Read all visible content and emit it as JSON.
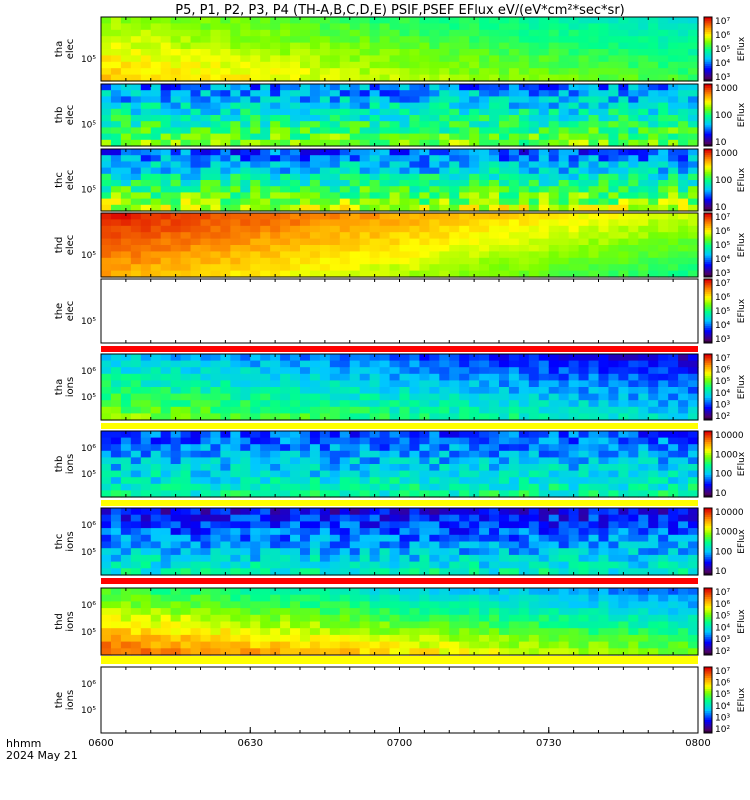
{
  "title": "P5, P1, P2, P3, P4 (TH-A,B,C,D,E) PSIF,PSEF EFlux eV/(eV*cm²*sec*sr)",
  "time_axis": {
    "label_line1": "hhmm",
    "label_line2": "2024 May 21",
    "ticks": [
      "0600",
      "0630",
      "0700",
      "0730",
      "0800"
    ]
  },
  "colorbar_unit": "EFlux",
  "chart_data": [
    {
      "type": "heatmap",
      "panel": "tha elec",
      "ylabel": [
        "tha",
        "elec"
      ],
      "ytick": "10⁵",
      "cbar_ticks": [
        "10³",
        "10⁴",
        "10⁵",
        "10⁶",
        "10⁷"
      ],
      "cbar_range_log10": [
        2.5,
        7
      ],
      "level_start": 5.8,
      "level_end": 4.8,
      "level_top_delta": -0.4,
      "level_bottom_delta": 0.2,
      "noise": 0.15,
      "bars": []
    },
    {
      "type": "heatmap",
      "panel": "thb elec",
      "ylabel": [
        "thb",
        "elec"
      ],
      "ytick": "10⁵",
      "cbar_ticks": [
        "10",
        "100",
        "1000"
      ],
      "cbar_range_log10": [
        0.8,
        3.8
      ],
      "level_start": 2.1,
      "level_end": 2.1,
      "level_top_delta": -0.4,
      "level_bottom_delta": 0.5,
      "noise": 0.35,
      "bars": []
    },
    {
      "type": "heatmap",
      "panel": "thc elec",
      "ylabel": [
        "thc",
        "elec"
      ],
      "ytick": "10⁵",
      "cbar_ticks": [
        "10",
        "100",
        "1000"
      ],
      "cbar_range_log10": [
        0.8,
        3.8
      ],
      "level_start": 2.2,
      "level_end": 2.2,
      "level_top_delta": -0.6,
      "level_bottom_delta": 0.6,
      "noise": 0.35,
      "bars": []
    },
    {
      "type": "heatmap",
      "panel": "thd elec",
      "ylabel": [
        "thd",
        "elec"
      ],
      "ytick": "10⁵",
      "cbar_ticks": [
        "10³",
        "10⁴",
        "10⁵",
        "10⁶",
        "10⁷"
      ],
      "cbar_range_log10": [
        2.5,
        7
      ],
      "level_start": 6.6,
      "level_end": 5.2,
      "level_top_delta": 0.3,
      "level_bottom_delta": -0.4,
      "noise": 0.12,
      "bars": []
    },
    {
      "type": "heatmap",
      "panel": "the elec",
      "ylabel": [
        "the",
        "elec"
      ],
      "ytick": "10⁵",
      "cbar_ticks": [
        "10³",
        "10⁴",
        "10⁵",
        "10⁶",
        "10⁷"
      ],
      "cbar_range_log10": [
        2.5,
        7
      ],
      "empty": true,
      "bars": [
        {
          "color": "#ff0000"
        }
      ]
    },
    {
      "type": "heatmap",
      "panel": "tha ions",
      "ylabel": [
        "tha",
        "ions"
      ],
      "ytick": "10⁵",
      "ytick2": "10⁶",
      "cbar_ticks": [
        "10²",
        "10³",
        "10⁴",
        "10⁵",
        "10⁶",
        "10⁷"
      ],
      "cbar_range_log10": [
        1.5,
        7
      ],
      "level_start": 4.8,
      "level_end": 3.6,
      "level_top_delta": -1.2,
      "level_bottom_delta": 0.1,
      "noise": 0.35,
      "bars": [
        {
          "color": "#ffff00"
        }
      ]
    },
    {
      "type": "heatmap",
      "panel": "thb ions",
      "ylabel": [
        "thb",
        "ions"
      ],
      "ytick": "10⁵",
      "ytick2": "10⁶",
      "cbar_ticks": [
        "10",
        "100",
        "1000",
        "10000"
      ],
      "cbar_range_log10": [
        0.8,
        4.6
      ],
      "level_start": 2.2,
      "level_end": 2.2,
      "level_top_delta": -0.4,
      "level_bottom_delta": 0.4,
      "noise": 0.35,
      "bars": [
        {
          "color": "#ffff00"
        }
      ]
    },
    {
      "type": "heatmap",
      "panel": "thc ions",
      "ylabel": [
        "thc",
        "ions"
      ],
      "ytick": "10⁵",
      "ytick2": "10⁶",
      "cbar_ticks": [
        "10",
        "100",
        "1000",
        "10000"
      ],
      "cbar_range_log10": [
        0.8,
        4.6
      ],
      "level_start": 2.1,
      "level_end": 2.1,
      "level_top_delta": -0.6,
      "level_bottom_delta": 0.4,
      "noise": 0.35,
      "bars": [
        {
          "color": "#ff0000"
        }
      ]
    },
    {
      "type": "heatmap",
      "panel": "thd ions",
      "ylabel": [
        "thd",
        "ions"
      ],
      "ytick": "10⁵",
      "ytick2": "10⁶",
      "cbar_ticks": [
        "10²",
        "10³",
        "10⁴",
        "10⁵",
        "10⁶",
        "10⁷"
      ],
      "cbar_range_log10": [
        1.5,
        7
      ],
      "level_start": 6.2,
      "level_end": 4.6,
      "level_top_delta": -1.6,
      "level_bottom_delta": 0.2,
      "noise": 0.25,
      "bars": [
        {
          "color": "#ffff00"
        }
      ]
    },
    {
      "type": "heatmap",
      "panel": "the ions",
      "ylabel": [
        "the",
        "ions"
      ],
      "ytick": "10⁵",
      "ytick2": "10⁶",
      "cbar_ticks": [
        "10²",
        "10³",
        "10⁴",
        "10⁵",
        "10⁶",
        "10⁷"
      ],
      "cbar_range_log10": [
        1.5,
        7
      ],
      "empty": true,
      "bars": []
    }
  ]
}
